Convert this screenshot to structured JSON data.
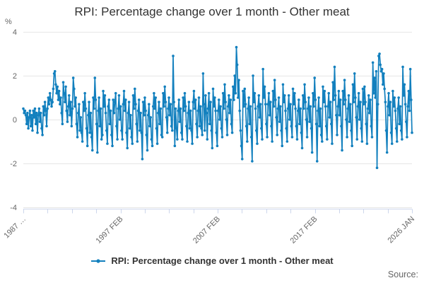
{
  "chart": {
    "title": "RPI: Percentage change over 1 month - Other meat",
    "y_unit": "%",
    "legend_label": "RPI: Percentage change over 1 month - Other meat",
    "source_label": "Source:",
    "colors": {
      "series": "#1380be",
      "grid": "#e6e6e6",
      "axis": "#ccd6eb",
      "label": "#666666",
      "title": "#333333",
      "legend_text": "#333333",
      "source_text": "#666666"
    }
  },
  "chart_data": {
    "type": "line",
    "title": "RPI: Percentage change over 1 month - Other meat",
    "xlabel": "",
    "ylabel": "%",
    "ylim": [
      -4,
      4
    ],
    "y_ticks": [
      4,
      2,
      0,
      -2,
      -4
    ],
    "x_start": "1987 FEB",
    "x_end": "2026 JAN",
    "x_tick_labels": [
      "1987 …",
      "1997 FEB",
      "2007 FEB",
      "2017 FEB",
      "2026 JAN"
    ],
    "grid": "horizontal",
    "legend_position": "bottom",
    "series": [
      {
        "name": "RPI: Percentage change over 1 month - Other meat",
        "period": "monthly, Feb 1987 - Jan 2026",
        "values": [
          0.5,
          0.3,
          0.4,
          0.2,
          -0.2,
          0.3,
          -0.4,
          0.1,
          0.4,
          -0.3,
          0.2,
          -0.5,
          0.4,
          0.1,
          0.5,
          -0.2,
          0.3,
          -0.6,
          0.2,
          0.5,
          -0.1,
          0.3,
          -0.4,
          -0.7,
          0.6,
          0.2,
          0.8,
          0.4,
          -0.3,
          0.5,
          1.0,
          0.7,
          1.2,
          0.9,
          0.6,
          0.8,
          1.4,
          2.1,
          2.2,
          1.6,
          1.2,
          1.5,
          0.9,
          1.3,
          0.7,
          1.0,
          0.3,
          -0.2,
          1.7,
          1.2,
          0.8,
          1.5,
          0.4,
          -0.1,
          0.6,
          1.1,
          0.2,
          0.8,
          -0.3,
          0.5,
          1.9,
          1.4,
          0.6,
          1.0,
          -0.2,
          -0.8,
          0.3,
          0.7,
          -0.5,
          0.1,
          -0.6,
          -1.0,
          0.8,
          0.4,
          1.2,
          0.5,
          -0.4,
          -1.2,
          0.2,
          0.8,
          -0.6,
          0.3,
          -0.8,
          -1.4,
          1.0,
          0.5,
          1.9,
          0.9,
          -0.2,
          -1.5,
          0.4,
          1.0,
          -0.3,
          0.5,
          -0.9,
          -0.7,
          1.3,
          0.6,
          1.1,
          0.3,
          -0.5,
          -1.1,
          0.6,
          0.9,
          -0.2,
          0.4,
          -0.7,
          -1.2,
          0.9,
          0.3,
          0.8,
          1.2,
          -0.3,
          -0.9,
          0.5,
          1.1,
          0.0,
          0.6,
          -0.5,
          -0.9,
          0.7,
          1.3,
          0.4,
          0.9,
          -0.6,
          -1.3,
          0.3,
          0.8,
          -0.4,
          0.2,
          -0.8,
          -1.1,
          1.1,
          0.5,
          1.4,
          0.7,
          -0.2,
          -1.0,
          0.4,
          0.9,
          -0.5,
          0.3,
          -0.6,
          -1.8,
          0.8,
          0.2,
          1.0,
          0.4,
          -0.7,
          -1.4,
          0.2,
          0.7,
          -0.3,
          0.1,
          -0.9,
          -1.2,
          0.6,
          1.2,
          0.5,
          1.0,
          -0.4,
          -1.1,
          0.3,
          0.8,
          -0.2,
          0.5,
          -0.7,
          -0.8,
          1.2,
          0.6,
          1.5,
          0.8,
          0.1,
          -0.6,
          0.5,
          1.0,
          0.2,
          0.7,
          -0.3,
          -0.5,
          2.9,
          0.8,
          -1.2,
          0.5,
          -0.4,
          -0.9,
          0.4,
          0.9,
          -0.1,
          0.5,
          -0.6,
          -0.9,
          1.0,
          0.4,
          1.2,
          0.6,
          -0.3,
          -1.0,
          0.3,
          0.8,
          -0.4,
          0.4,
          -0.5,
          -1.1,
          0.8,
          1.3,
          0.5,
          0.9,
          -0.2,
          -0.8,
          0.4,
          1.0,
          -0.3,
          0.6,
          -0.4,
          -0.7,
          2.1,
          0.7,
          -0.5,
          1.1,
          0.3,
          -0.9,
          0.5,
          1.2,
          -0.2,
          0.8,
          -0.5,
          -1.3,
          1.4,
          0.6,
          1.0,
          0.4,
          -0.6,
          -1.2,
          0.4,
          0.9,
          0.0,
          0.6,
          -0.4,
          -0.8,
          1.2,
          0.5,
          1.6,
          0.8,
          0.0,
          -0.7,
          0.6,
          1.1,
          0.3,
          0.9,
          -0.2,
          -0.6,
          1.5,
          0.9,
          2.0,
          1.2,
          3.3,
          2.5,
          1.0,
          1.8,
          0.4,
          -0.5,
          -1.2,
          -1.8,
          1.3,
          0.6,
          1.4,
          0.7,
          -0.3,
          -1.0,
          0.5,
          1.0,
          -0.2,
          0.6,
          -0.8,
          -1.9,
          2.0,
          0.8,
          1.2,
          0.5,
          -0.5,
          -1.1,
          0.6,
          1.1,
          0.1,
          0.7,
          -0.4,
          -0.9,
          2.3,
          1.0,
          1.5,
          0.7,
          -0.2,
          -0.8,
          0.7,
          1.2,
          0.2,
          0.8,
          -0.3,
          -1.0,
          1.3,
          0.6,
          1.8,
          0.9,
          0.1,
          -0.7,
          0.5,
          1.0,
          -0.1,
          0.6,
          -0.5,
          -1.2,
          1.6,
          0.8,
          1.1,
          0.4,
          -0.4,
          -1.0,
          0.5,
          1.1,
          0.0,
          0.7,
          -0.3,
          -0.8,
          1.4,
          0.7,
          1.2,
          0.5,
          -0.3,
          -0.9,
          0.4,
          0.9,
          -0.2,
          0.5,
          -0.6,
          -1.3,
          1.1,
          0.5,
          1.6,
          0.8,
          0.0,
          -0.8,
          0.5,
          1.0,
          -0.1,
          0.6,
          -0.4,
          -1.5,
          1.2,
          0.6,
          1.9,
          0.9,
          -0.2,
          -1.9,
          0.4,
          1.0,
          -0.3,
          0.5,
          -0.7,
          -1.0,
          1.5,
          0.8,
          1.3,
          0.6,
          -0.3,
          -0.9,
          0.6,
          1.2,
          0.1,
          0.8,
          -0.2,
          -1.1,
          1.7,
          0.9,
          2.4,
          1.1,
          0.2,
          -0.7,
          0.6,
          1.3,
          0.2,
          0.9,
          -0.3,
          -1.4,
          1.3,
          0.7,
          1.8,
          0.9,
          0.0,
          -0.8,
          0.5,
          1.1,
          -0.1,
          0.7,
          -0.5,
          -1.2,
          1.6,
          0.8,
          2.1,
          1.0,
          0.1,
          -0.9,
          0.6,
          1.2,
          0.0,
          0.8,
          -0.4,
          -1.0,
          1.4,
          0.7,
          1.5,
          0.8,
          -0.2,
          -1.1,
          0.5,
          1.1,
          0.3,
          0.9,
          -0.3,
          -0.8,
          2.6,
          1.2,
          1.9,
          1.0,
          2.2,
          -2.2,
          0.7,
          2.9,
          3.0,
          2.5,
          2.2,
          2.3,
          1.6,
          2.1,
          1.4,
          0.8,
          -0.5,
          -1.5,
          0.6,
          1.2,
          0.2,
          0.8,
          -0.6,
          -1.1,
          1.3,
          0.6,
          1.0,
          0.4,
          -0.4,
          -1.0,
          0.5,
          1.0,
          -0.2,
          0.6,
          -0.5,
          -0.9,
          2.4,
          1.1,
          1.6,
          0.7,
          -0.1,
          -0.8,
          0.6,
          1.3,
          0.4,
          2.3,
          0.9,
          -0.6
        ]
      }
    ]
  }
}
